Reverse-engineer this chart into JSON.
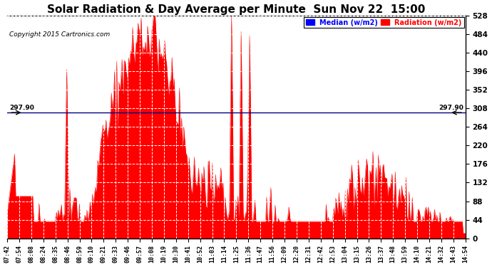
{
  "title": "Solar Radiation & Day Average per Minute  Sun Nov 22  15:00",
  "copyright": "Copyright 2015 Cartronics.com",
  "median_value": 297.9,
  "median_label": "297.90",
  "ylim": [
    0.0,
    528.0
  ],
  "yticks": [
    0.0,
    44.0,
    88.0,
    132.0,
    176.0,
    220.0,
    264.0,
    308.0,
    352.0,
    396.0,
    440.0,
    484.0,
    528.0
  ],
  "background_color": "#ffffff",
  "plot_bg_color": "#ffffff",
  "bar_color": "#ff0000",
  "median_line_color": "#000080",
  "title_fontsize": 11,
  "legend_median_color": "#0000ff",
  "legend_radiation_color": "#ff0000",
  "xtick_labels": [
    "07:42",
    "07:54",
    "08:08",
    "08:24",
    "08:35",
    "08:46",
    "08:59",
    "09:10",
    "09:21",
    "09:33",
    "09:46",
    "09:57",
    "10:08",
    "10:19",
    "10:30",
    "10:41",
    "10:52",
    "11:03",
    "11:14",
    "11:25",
    "11:36",
    "11:47",
    "11:56",
    "12:09",
    "12:20",
    "12:31",
    "12:42",
    "12:53",
    "13:04",
    "13:15",
    "13:26",
    "13:37",
    "13:48",
    "13:59",
    "14:10",
    "14:21",
    "14:32",
    "14:43",
    "14:54"
  ]
}
